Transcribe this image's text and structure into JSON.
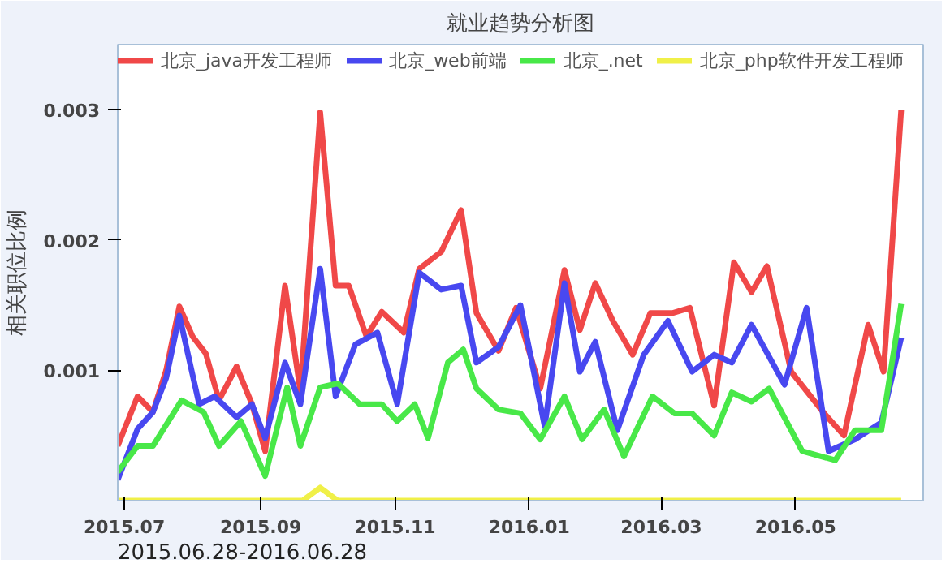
{
  "chart_data": {
    "type": "line",
    "title": "就业趋势分析图",
    "ylabel": "相关职位比例",
    "annotations": [
      "2015.06.28-2016.06.28"
    ],
    "xlim": [
      "2015-06-28",
      "2016-06-28"
    ],
    "xticks": [
      {
        "value": "2015-07-01",
        "label": "2015.07"
      },
      {
        "value": "2015-09-01",
        "label": "2015.09"
      },
      {
        "value": "2015-11-01",
        "label": "2015.11"
      },
      {
        "value": "2016-01-01",
        "label": "2016.01"
      },
      {
        "value": "2016-03-01",
        "label": "2016.03"
      },
      {
        "value": "2016-05-01",
        "label": "2016.05"
      }
    ],
    "ylim": [
      0,
      0.0035
    ],
    "yticks": [
      0.001,
      0.002,
      0.003
    ],
    "grid": false,
    "legend": "top",
    "marker": "none",
    "line_style": "solid",
    "series": [
      {
        "name": "北京_java开发工程师",
        "color": "#f04848",
        "x": [
          "2015-06-28",
          "2015-07-07",
          "2015-07-14",
          "2015-07-20",
          "2015-07-26",
          "2015-08-01",
          "2015-08-07",
          "2015-08-13",
          "2015-08-21",
          "2015-08-28",
          "2015-09-03",
          "2015-09-12",
          "2015-09-19",
          "2015-09-28",
          "2015-10-05",
          "2015-10-11",
          "2015-10-19",
          "2015-10-26",
          "2015-11-05",
          "2015-11-12",
          "2015-11-22",
          "2015-12-01",
          "2015-12-08",
          "2015-12-18",
          "2015-12-26",
          "2016-01-06",
          "2016-01-17",
          "2016-01-24",
          "2016-01-31",
          "2016-02-08",
          "2016-02-17",
          "2016-02-25",
          "2016-03-06",
          "2016-03-14",
          "2016-03-25",
          "2016-04-03",
          "2016-04-11",
          "2016-04-18",
          "2016-04-29",
          "2016-05-14",
          "2016-05-23",
          "2016-06-03",
          "2016-06-10",
          "2016-06-18"
        ],
        "values": [
          0.00042,
          0.0008,
          0.00068,
          0.001,
          0.00149,
          0.00126,
          0.00113,
          0.00077,
          0.00103,
          0.00074,
          0.00038,
          0.00165,
          0.00084,
          0.00298,
          0.00165,
          0.00165,
          0.00126,
          0.00145,
          0.00129,
          0.00178,
          0.00191,
          0.00223,
          0.00144,
          0.00115,
          0.00148,
          0.00086,
          0.00177,
          0.00131,
          0.00167,
          0.00138,
          0.00112,
          0.00144,
          0.00144,
          0.00148,
          0.00073,
          0.00183,
          0.0016,
          0.0018,
          0.00099,
          0.00067,
          0.0005,
          0.00135,
          0.00099,
          0.003
        ]
      },
      {
        "name": "北京_web前端",
        "color": "#4848f0",
        "x": [
          "2015-06-28",
          "2015-07-07",
          "2015-07-14",
          "2015-07-20",
          "2015-07-26",
          "2015-08-04",
          "2015-08-11",
          "2015-08-21",
          "2015-08-28",
          "2015-09-03",
          "2015-09-12",
          "2015-09-19",
          "2015-09-28",
          "2015-10-05",
          "2015-10-14",
          "2015-10-24",
          "2015-11-02",
          "2015-11-12",
          "2015-11-22",
          "2015-12-01",
          "2015-12-08",
          "2015-12-18",
          "2015-12-28",
          "2016-01-08",
          "2016-01-17",
          "2016-01-24",
          "2016-01-31",
          "2016-02-10",
          "2016-02-22",
          "2016-03-04",
          "2016-03-15",
          "2016-03-25",
          "2016-04-02",
          "2016-04-11",
          "2016-04-26",
          "2016-05-06",
          "2016-05-16",
          "2016-05-28",
          "2016-06-09",
          "2016-06-18"
        ],
        "values": [
          0.00016,
          0.00055,
          0.00068,
          0.00094,
          0.00142,
          0.00074,
          0.0008,
          0.00064,
          0.00074,
          0.00048,
          0.00106,
          0.00074,
          0.00178,
          0.0008,
          0.0012,
          0.00129,
          0.00074,
          0.00175,
          0.00162,
          0.00165,
          0.00106,
          0.00118,
          0.0015,
          0.00057,
          0.00167,
          0.00099,
          0.00122,
          0.00054,
          0.00112,
          0.00138,
          0.00099,
          0.00112,
          0.00106,
          0.00135,
          0.00089,
          0.00148,
          0.00038,
          0.00047,
          0.0006,
          0.00125
        ]
      },
      {
        "name": "北京_.net",
        "color": "#48e848",
        "x": [
          "2015-06-28",
          "2015-07-07",
          "2015-07-14",
          "2015-07-27",
          "2015-08-06",
          "2015-08-13",
          "2015-08-23",
          "2015-09-03",
          "2015-09-13",
          "2015-09-19",
          "2015-09-28",
          "2015-10-06",
          "2015-10-16",
          "2015-10-26",
          "2015-11-02",
          "2015-11-10",
          "2015-11-16",
          "2015-11-25",
          "2015-12-02",
          "2015-12-08",
          "2015-12-18",
          "2015-12-28",
          "2016-01-06",
          "2016-01-17",
          "2016-01-25",
          "2016-02-04",
          "2016-02-13",
          "2016-02-26",
          "2016-03-07",
          "2016-03-15",
          "2016-03-25",
          "2016-04-02",
          "2016-04-11",
          "2016-04-19",
          "2016-05-04",
          "2016-05-19",
          "2016-05-28",
          "2016-06-09",
          "2016-06-18"
        ],
        "values": [
          0.00022,
          0.00042,
          0.00042,
          0.00077,
          0.00068,
          0.00042,
          0.00061,
          0.00019,
          0.00087,
          0.00042,
          0.00087,
          0.0009,
          0.00074,
          0.00074,
          0.00061,
          0.00074,
          0.00048,
          0.00106,
          0.00116,
          0.00086,
          0.0007,
          0.00067,
          0.00047,
          0.0008,
          0.00047,
          0.0007,
          0.00034,
          0.0008,
          0.00067,
          0.00067,
          0.0005,
          0.00083,
          0.00076,
          0.00086,
          0.00038,
          0.00031,
          0.00054,
          0.00054,
          0.00151
        ]
      },
      {
        "name": "北京_php软件开发工程师",
        "color": "#f0f048",
        "x": [
          "2015-06-28",
          "2015-09-20",
          "2015-09-28",
          "2015-10-06",
          "2016-03-01",
          "2016-06-18"
        ],
        "values": [
          0,
          0,
          0.0001,
          0,
          0,
          0
        ]
      }
    ]
  }
}
